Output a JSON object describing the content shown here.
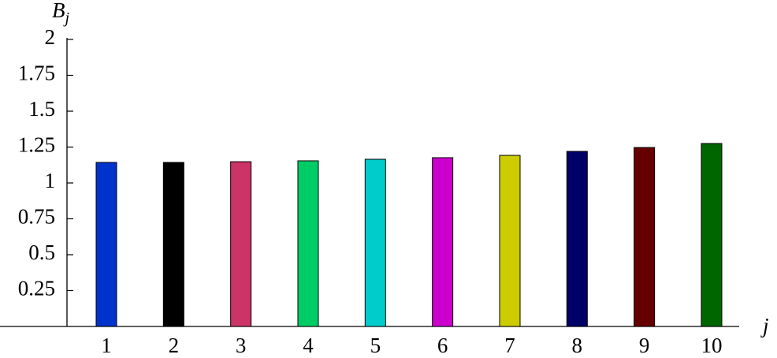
{
  "chart_data": {
    "type": "bar",
    "ylabel": "B",
    "ylabel_subscript": "j",
    "xlabel": "j",
    "categories": [
      "1",
      "2",
      "3",
      "4",
      "5",
      "6",
      "7",
      "8",
      "9",
      "10"
    ],
    "values": [
      1.143,
      1.143,
      1.148,
      1.154,
      1.165,
      1.176,
      1.192,
      1.22,
      1.247,
      1.275
    ],
    "colors": [
      "#0033cc",
      "#000000",
      "#cc3366",
      "#00cc66",
      "#00cccc",
      "#cc00cc",
      "#cccc00",
      "#000066",
      "#660000",
      "#006600"
    ],
    "ylim": [
      0,
      2
    ],
    "yticks": [
      0.25,
      0.5,
      0.75,
      1,
      1.25,
      1.5,
      1.75,
      2
    ],
    "grid": false
  }
}
